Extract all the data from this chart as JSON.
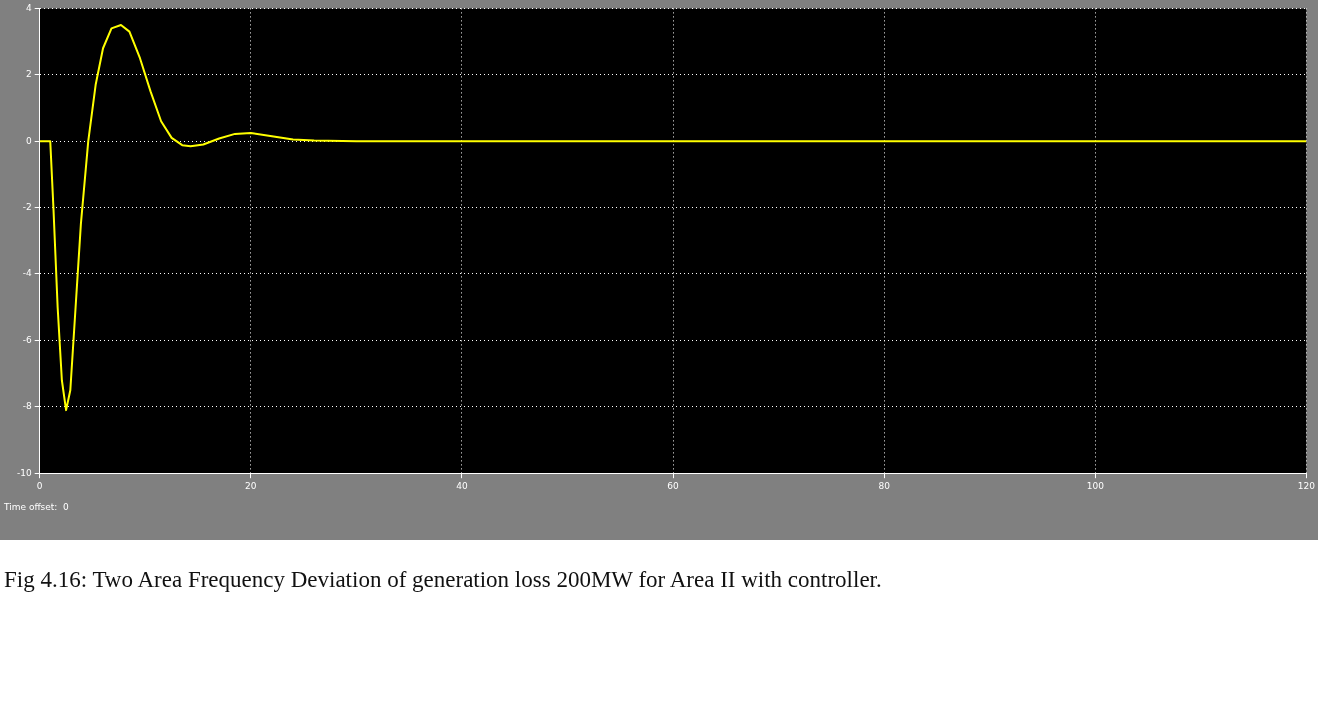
{
  "chart_data": {
    "type": "line",
    "annotations": [
      "Time offset:  0",
      "Fig 4.16: Two Area Frequency Deviation of generation loss 200MW for Area II with controller."
    ],
    "series": [
      {
        "color": "#ffff00",
        "x": [
          0,
          1,
          1.3,
          1.7,
          2.1,
          2.5,
          2.9,
          3.4,
          3.9,
          4.6,
          5.3,
          6,
          6.8,
          7.7,
          8.5,
          9.5,
          10.5,
          11.5,
          12.5,
          13.5,
          14.3,
          15.5,
          17,
          18.5,
          20,
          22,
          24,
          26,
          30,
          120
        ],
        "values": [
          0,
          0,
          -2,
          -5,
          -7.2,
          -8.1,
          -7.5,
          -5,
          -2.5,
          0,
          1.7,
          2.8,
          3.4,
          3.5,
          3.3,
          2.5,
          1.5,
          0.6,
          0.1,
          -0.12,
          -0.15,
          -0.1,
          0.08,
          0.22,
          0.25,
          0.15,
          0.05,
          0.02,
          0,
          0
        ]
      }
    ],
    "xlim": [
      0,
      120
    ],
    "xticks": [
      0,
      20,
      40,
      60,
      80,
      100,
      120
    ],
    "ylim": [
      -10,
      4
    ],
    "yticks": [
      -10,
      -8,
      -6,
      -4,
      -2,
      0,
      2,
      4
    ],
    "grid": true,
    "legend": false,
    "marker": "none",
    "line_style": "solid"
  }
}
